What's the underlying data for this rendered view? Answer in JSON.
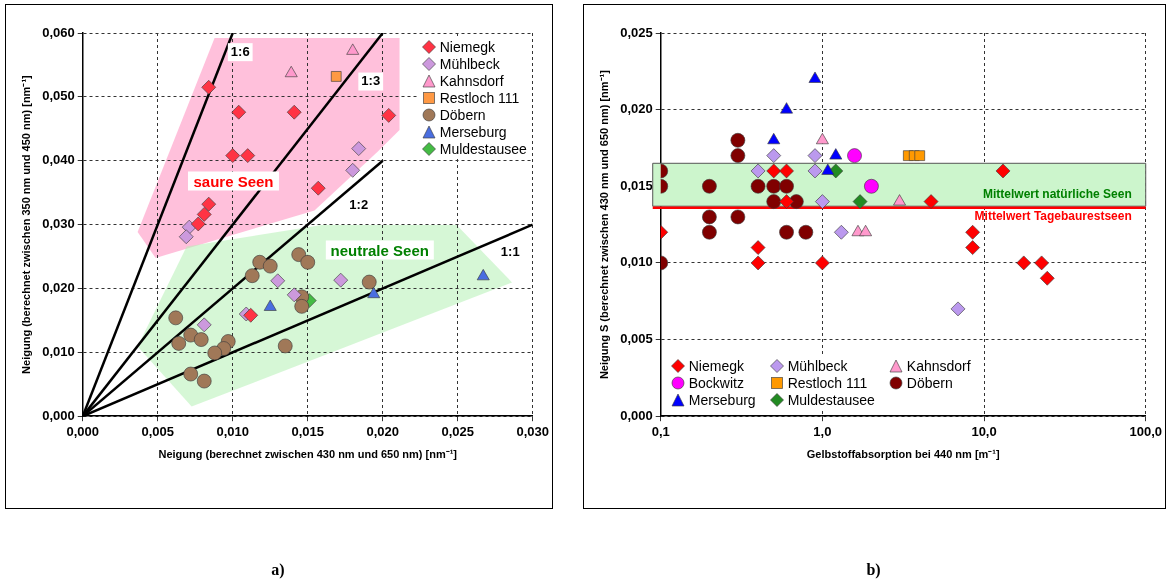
{
  "chart_data": [
    {
      "type": "scatter",
      "xlabel": "Neigung (berechnet zwischen 430 nm und 650 nm) [nm⁻¹]",
      "ylabel": "Neigung (berechnet zwischen 350 nm und 450 nm) [nm⁻¹]",
      "xlim": [
        0,
        0.03
      ],
      "xticks": [
        {
          "value": 0,
          "label": "0,000"
        },
        {
          "value": 0.005,
          "label": "0,005"
        },
        {
          "value": 0.01,
          "label": "0,010"
        },
        {
          "value": 0.015,
          "label": "0,015"
        },
        {
          "value": 0.02,
          "label": "0,020"
        },
        {
          "value": 0.025,
          "label": "0,025"
        },
        {
          "value": 0.03,
          "label": "0,030"
        }
      ],
      "ylim": [
        0,
        0.06
      ],
      "yticks": [
        {
          "value": 0,
          "label": "0,000"
        },
        {
          "value": 0.01,
          "label": "0,010"
        },
        {
          "value": 0.02,
          "label": "0,020"
        },
        {
          "value": 0.03,
          "label": "0,030"
        },
        {
          "value": 0.04,
          "label": "0,040"
        },
        {
          "value": 0.05,
          "label": "0,050"
        },
        {
          "value": 0.06,
          "label": "0,060"
        }
      ],
      "grid": true,
      "legend": "top right",
      "series": [
        {
          "type": "line",
          "color": "#000000",
          "marker": "none",
          "x": [
            0,
            0.01
          ],
          "values": [
            0,
            0.06
          ]
        },
        {
          "type": "line",
          "color": "#000000",
          "marker": "none",
          "x": [
            0,
            0.02
          ],
          "values": [
            0,
            0.06
          ]
        },
        {
          "type": "line",
          "color": "#000000",
          "marker": "none",
          "x": [
            0,
            0.02
          ],
          "values": [
            0,
            0.04
          ]
        },
        {
          "type": "line",
          "color": "#000000",
          "marker": "none",
          "x": [
            0,
            0.03
          ],
          "values": [
            0,
            0.03
          ]
        },
        {
          "name": "Niemegk",
          "color": "#ff3344",
          "marker": "diamond",
          "x": [
            0.0084,
            0.0104,
            0.0141,
            0.0204,
            0.01,
            0.011,
            0.0157,
            0.0084,
            0.0081,
            0.0077,
            0.0112
          ],
          "values": [
            0.0515,
            0.0476,
            0.0476,
            0.0471,
            0.0408,
            0.0408,
            0.0357,
            0.0332,
            0.0316,
            0.0301,
            0.0158
          ]
        },
        {
          "name": "Mühlbeck",
          "color": "#cc99dd",
          "marker": "diamond",
          "x": [
            0.0184,
            0.018,
            0.0071,
            0.0069,
            0.013,
            0.0172,
            0.0141,
            0.0109,
            0.0081
          ],
          "values": [
            0.0419,
            0.0385,
            0.0296,
            0.0281,
            0.0212,
            0.0213,
            0.019,
            0.016,
            0.0143
          ]
        },
        {
          "name": "Kahnsdorf",
          "color": "#ff99cc",
          "marker": "triangle",
          "x": [
            0.0139,
            0.018
          ],
          "values": [
            0.0537,
            0.0572
          ]
        },
        {
          "name": "Restloch 111",
          "color": "#ff9944",
          "marker": "square",
          "x": [
            0.0169
          ],
          "values": [
            0.0532
          ]
        },
        {
          "name": "Döbern",
          "color": "#a07858",
          "marker": "circle",
          "x": [
            0.0144,
            0.015,
            0.0118,
            0.0125,
            0.0113,
            0.0191,
            0.0146,
            0.0146,
            0.0062,
            0.0072,
            0.0079,
            0.0064,
            0.0097,
            0.0094,
            0.0088,
            0.0135,
            0.0072,
            0.0081
          ],
          "values": [
            0.0253,
            0.0241,
            0.0241,
            0.0235,
            0.022,
            0.021,
            0.0187,
            0.0172,
            0.0154,
            0.0127,
            0.012,
            0.0114,
            0.0117,
            0.0106,
            0.0099,
            0.011,
            0.0066,
            0.0055
          ]
        },
        {
          "name": "Merseburg",
          "color": "#4a6ee0",
          "marker": "triangle",
          "x": [
            0.0125,
            0.0194,
            0.0267
          ],
          "values": [
            0.0171,
            0.0191,
            0.0219
          ]
        },
        {
          "name": "Muldestausee",
          "color": "#44bb44",
          "marker": "diamond",
          "x": [
            0.0151
          ],
          "values": [
            0.0181
          ]
        }
      ],
      "annotations": [
        {
          "text": "1:6",
          "x": 0.0105,
          "y": 0.057
        },
        {
          "text": "1:3",
          "x": 0.0192,
          "y": 0.0524
        },
        {
          "text": "1:2",
          "x": 0.0184,
          "y": 0.033
        },
        {
          "text": "1:1",
          "x": 0.0285,
          "y": 0.0257
        },
        "saure Seen",
        "neutrale Seen",
        "a)"
      ]
    },
    {
      "type": "scatter",
      "xlabel": "Gelbstoffabsorption bei 440 nm [m⁻¹]",
      "ylabel": "Neigung S (berechnet zwischen 430 nm und 650 nm) [nm⁻¹]",
      "log": "x",
      "xlim": [
        0.1,
        100
      ],
      "xticks": [
        {
          "value": 0.1,
          "label": "0,1"
        },
        {
          "value": 1,
          "label": "1,0"
        },
        {
          "value": 10,
          "label": "10,0"
        },
        {
          "value": 100,
          "label": "100,0"
        }
      ],
      "ylim": [
        0,
        0.025
      ],
      "yticks": [
        {
          "value": 0,
          "label": "0,000"
        },
        {
          "value": 0.005,
          "label": "0,005"
        },
        {
          "value": 0.01,
          "label": "0,010"
        },
        {
          "value": 0.015,
          "label": "0,015"
        },
        {
          "value": 0.02,
          "label": "0,020"
        },
        {
          "value": 0.025,
          "label": "0,025"
        }
      ],
      "grid": true,
      "legend": "bottom left",
      "bands": [
        {
          "axis": "y",
          "from": 0.0137,
          "to": 0.0165,
          "label": "Mittelwert natürliche Seen",
          "color": "#ccf5cc"
        }
      ],
      "ref_lines": [
        {
          "axis": "y",
          "value": 0.0136,
          "label": "Mittelwert Tagebaurestseen",
          "color": "#ff0000"
        }
      ],
      "series": [
        {
          "name": "Niemegk",
          "color": "#ff0000",
          "marker": "diamond",
          "x": [
            0.5,
            0.6,
            13.1,
            4.7,
            0.6,
            0.1,
            8.5,
            8.5,
            0.4,
            0.4,
            1,
            17.6,
            22.7,
            24.6
          ],
          "values": [
            0.016,
            0.016,
            0.016,
            0.014,
            0.014,
            0.012,
            0.012,
            0.011,
            0.011,
            0.01,
            0.01,
            0.01,
            0.01,
            0.009
          ]
        },
        {
          "name": "Mühlbeck",
          "color": "#bb99ee",
          "marker": "diamond",
          "x": [
            0.5,
            0.9,
            0.4,
            0.9,
            1,
            1.31,
            6.9
          ],
          "values": [
            0.017,
            0.017,
            0.016,
            0.016,
            0.014,
            0.012,
            0.007
          ]
        },
        {
          "name": "Kahnsdorf",
          "color": "#ff99cc",
          "marker": "triangle",
          "x": [
            1,
            3,
            1.66,
            1.85
          ],
          "values": [
            0.018,
            0.014,
            0.012,
            0.012
          ]
        },
        {
          "name": "Bockwitz",
          "color": "#ff00ff",
          "marker": "circle",
          "x": [
            1.58,
            2.01
          ],
          "values": [
            0.017,
            0.015
          ]
        },
        {
          "name": "Restloch 111",
          "color": "#ff9900",
          "marker": "square",
          "x": [
            3.4,
            3.7,
            4
          ],
          "values": [
            0.017,
            0.017,
            0.017
          ]
        },
        {
          "name": "Döbern",
          "color": "#800000",
          "marker": "circle",
          "x": [
            0.3,
            0.3,
            0.1,
            0.1,
            0.2,
            0.4,
            0.5,
            0.6,
            0.5,
            0.69,
            0.2,
            0.3,
            0.2,
            0.6,
            0.79,
            0.1
          ],
          "values": [
            0.018,
            0.017,
            0.016,
            0.015,
            0.015,
            0.015,
            0.015,
            0.015,
            0.014,
            0.014,
            0.013,
            0.013,
            0.012,
            0.012,
            0.012,
            0.01
          ]
        },
        {
          "name": "Merseburg",
          "color": "#0000ff",
          "marker": "triangle",
          "x": [
            0.9,
            0.6,
            0.5,
            1.21,
            1.08
          ],
          "values": [
            0.022,
            0.02,
            0.018,
            0.017,
            0.016
          ]
        },
        {
          "name": "Muldestausee",
          "color": "#228b22",
          "marker": "diamond",
          "x": [
            1.21,
            1.71
          ],
          "values": [
            0.016,
            0.014
          ]
        }
      ],
      "annotations": [
        "b)"
      ]
    }
  ]
}
